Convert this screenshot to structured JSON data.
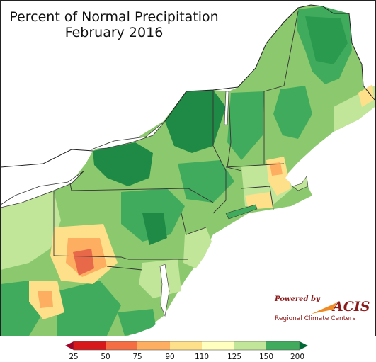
{
  "title": {
    "line1": "Percent of Normal Precipitation",
    "line2": "February 2016"
  },
  "legend": {
    "ticks": [
      "25",
      "50",
      "75",
      "90",
      "110",
      "125",
      "150",
      "200"
    ],
    "bins": [
      {
        "color": "#d7191c"
      },
      {
        "color": "#f46d43"
      },
      {
        "color": "#fdae61"
      },
      {
        "color": "#fee08b"
      },
      {
        "color": "#ffffbf"
      },
      {
        "color": "#c2e699"
      },
      {
        "color": "#41ab5d"
      }
    ],
    "below_arrow_color": "#a50026",
    "above_arrow_color": "#006837"
  },
  "logo": {
    "powered_by": "Powered by",
    "name": "ACIS",
    "subtitle": "Regional Climate Centers",
    "brand_color": "#8b1a1a",
    "swoosh_color": "#f08a24"
  },
  "map_colors": {
    "water": "#ffffff",
    "very_wet": "#1e8a45",
    "wet": "#41ab5d",
    "moderately_wet": "#8cc96e",
    "slightly_wet": "#c2e699",
    "near_normal": "#f0f4b0",
    "slightly_dry": "#fee08b",
    "dry": "#fdae61",
    "very_dry": "#e8684a"
  }
}
